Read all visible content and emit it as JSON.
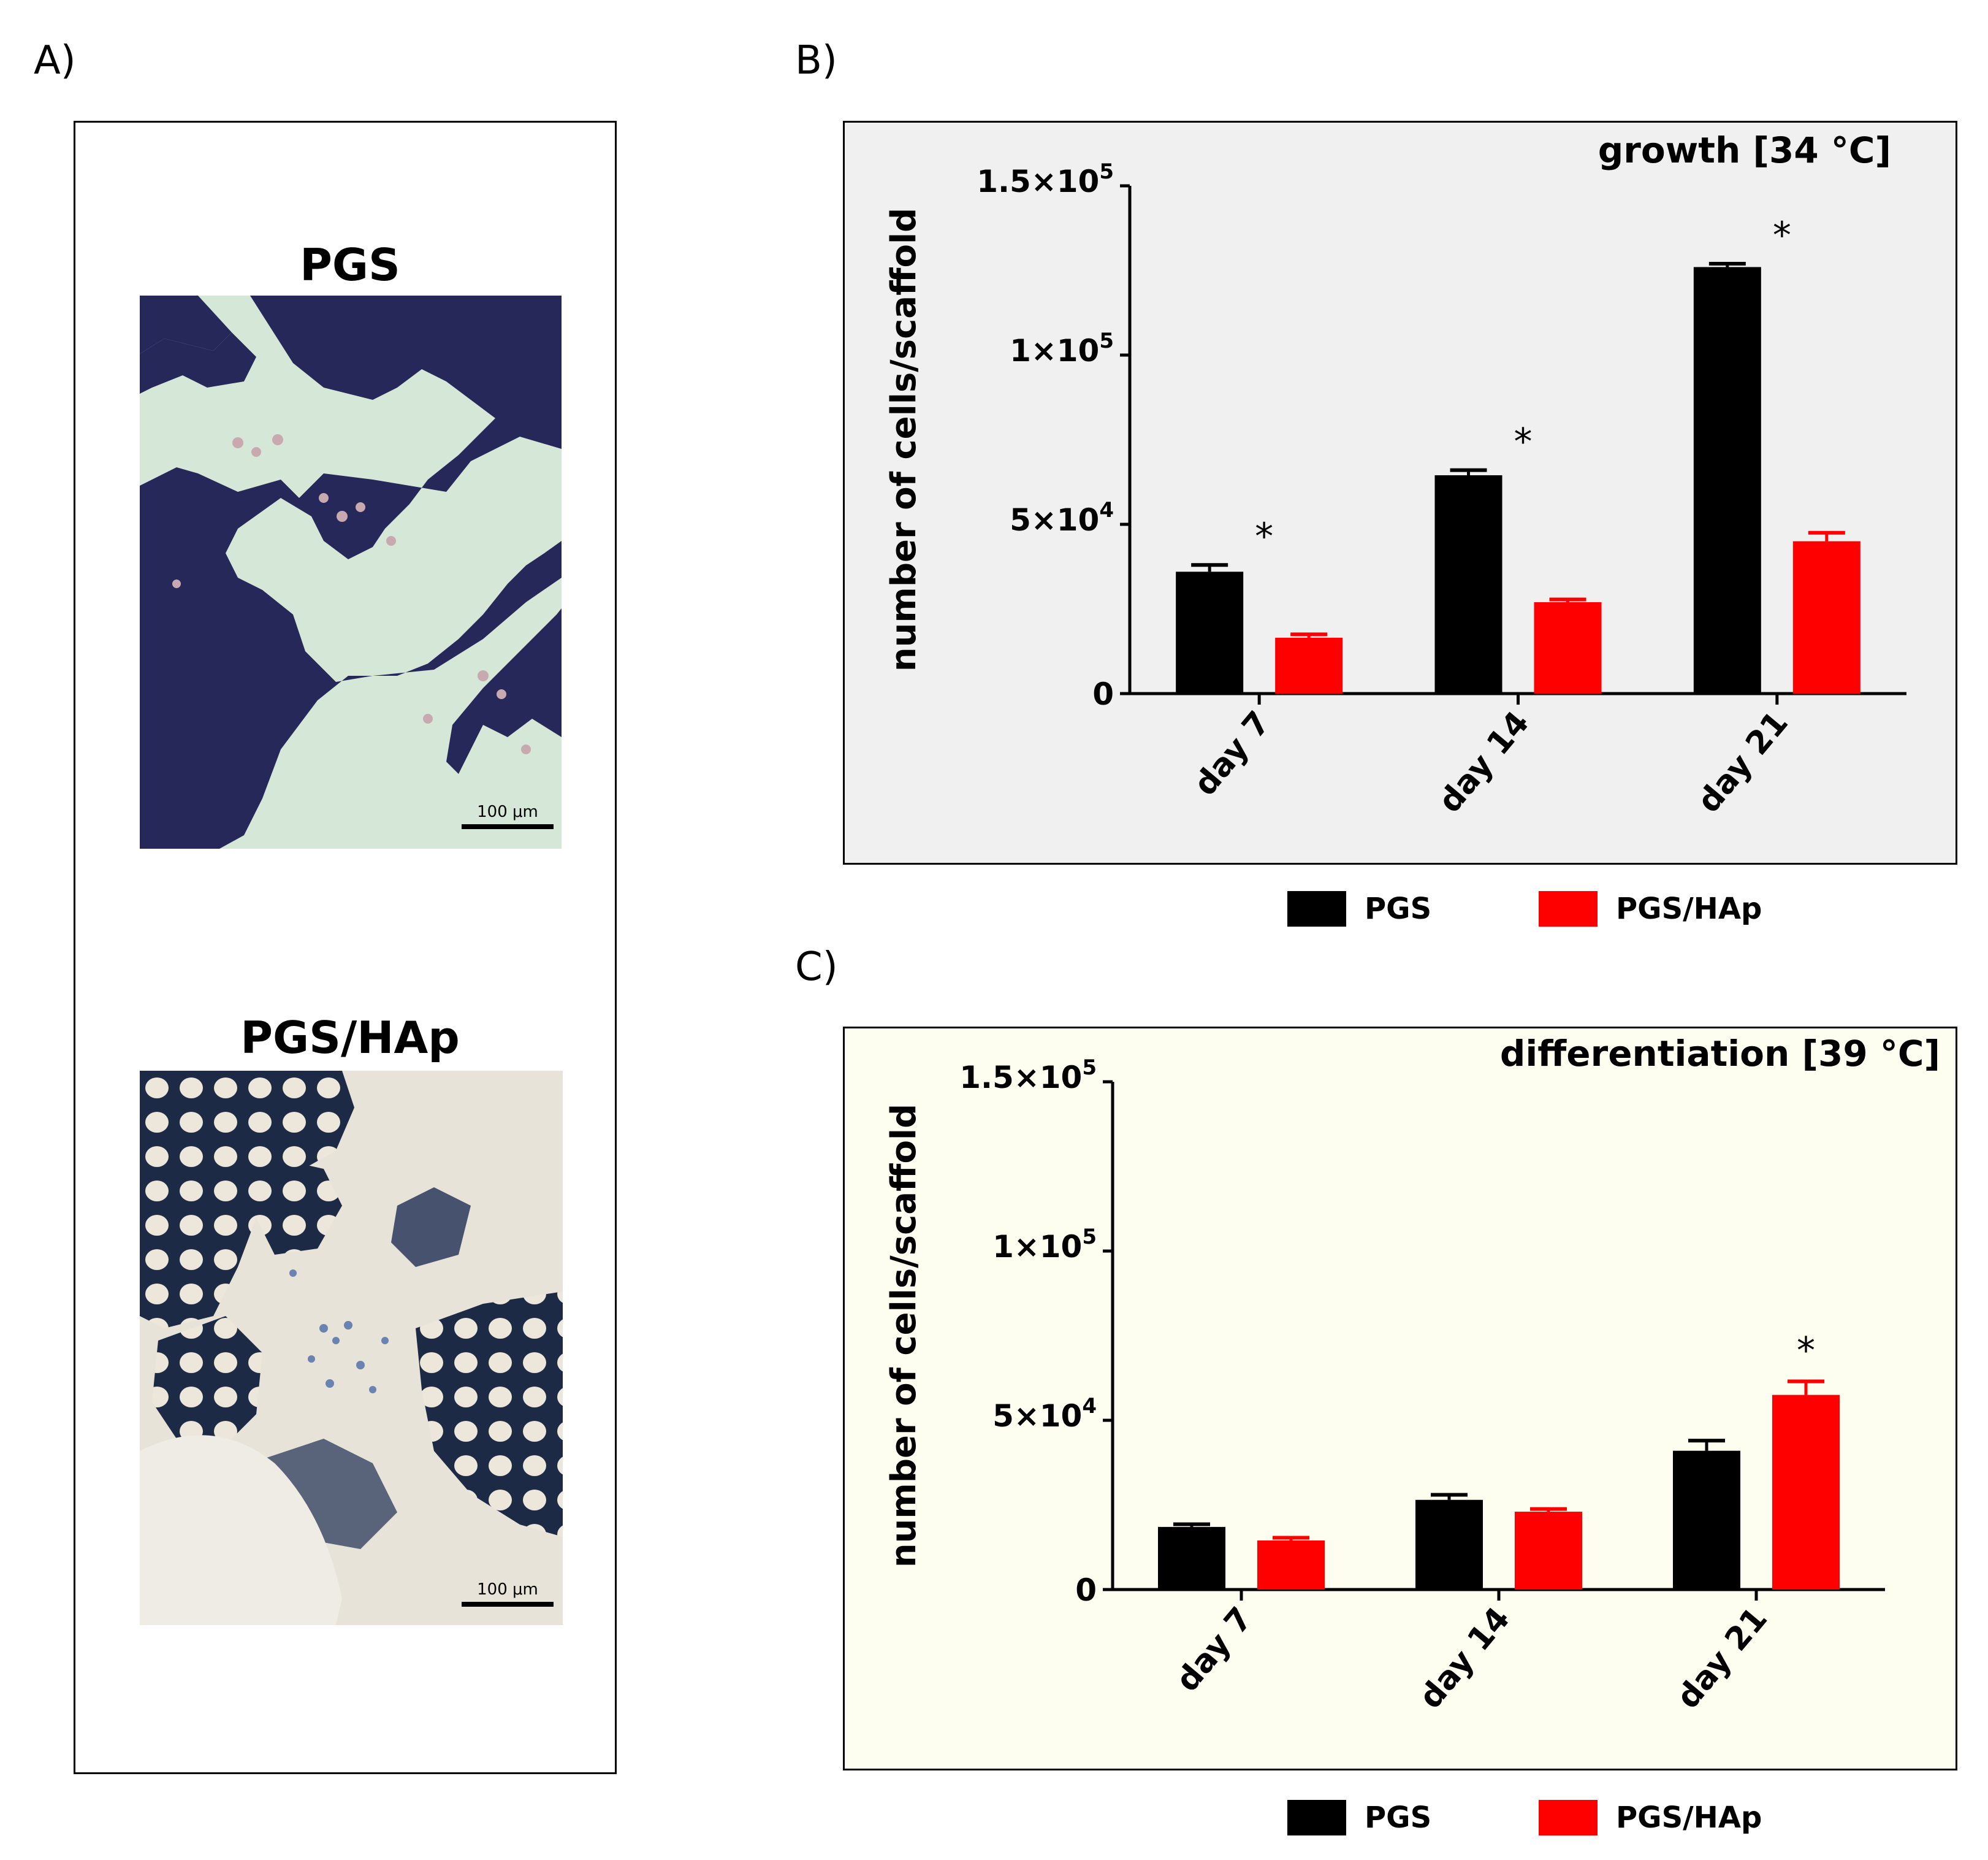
{
  "panels": {
    "a": {
      "label": "A)",
      "images": [
        {
          "title": "PGS",
          "scale_bar": "100 μm",
          "description": "histology-pgs-image"
        },
        {
          "title": "PGS/HAp",
          "scale_bar": "100 μm",
          "description": "histology-pgs-hap-image"
        }
      ]
    },
    "b": {
      "label": "B)"
    },
    "c": {
      "label": "C)"
    }
  },
  "colors": {
    "pgs": "#000000",
    "pgs_hap": "#ff0000",
    "bg_b": "#f0f0f0",
    "bg_c": "#fefef0",
    "pgs_stain": "#27285a",
    "pgs_bg": "#d5e7d6",
    "hap_bg": "#e8e3d8"
  },
  "legend": {
    "pgs": "PGS",
    "pgs_hap": "PGS/HAp"
  },
  "chart_data": [
    {
      "type": "bar",
      "title": "growth [34 °C]",
      "ylabel": "number of cells/scaffold",
      "xlabel": "",
      "categories": [
        "day 7",
        "day 14",
        "day 21"
      ],
      "ylim": [
        0,
        150000
      ],
      "yticks": [
        {
          "value": 0,
          "label": "0"
        },
        {
          "value": 50000,
          "label": "5×10",
          "sup": "4"
        },
        {
          "value": 100000,
          "label": "1×10",
          "sup": "5"
        },
        {
          "value": 150000,
          "label": "1.5×10",
          "sup": "5"
        }
      ],
      "series": [
        {
          "name": "PGS",
          "values": [
            36000,
            64500,
            126000
          ],
          "errors": [
            2000,
            1500,
            1000
          ]
        },
        {
          "name": "PGS/HAp",
          "values": [
            16500,
            27000,
            45000
          ],
          "errors": [
            1000,
            800,
            2500
          ]
        }
      ],
      "annotations": [
        {
          "category": "day 7",
          "text": "*"
        },
        {
          "category": "day 14",
          "text": "*"
        },
        {
          "category": "day 21",
          "text": "*"
        }
      ]
    },
    {
      "type": "bar",
      "title": "differentiation [39 °C]",
      "ylabel": "number of cells/scaffold",
      "xlabel": "",
      "categories": [
        "day 7",
        "day 14",
        "day 21"
      ],
      "ylim": [
        0,
        150000
      ],
      "yticks": [
        {
          "value": 0,
          "label": "0"
        },
        {
          "value": 50000,
          "label": "5×10",
          "sup": "4"
        },
        {
          "value": 100000,
          "label": "1×10",
          "sup": "5"
        },
        {
          "value": 150000,
          "label": "1.5×10",
          "sup": "5"
        }
      ],
      "series": [
        {
          "name": "PGS",
          "values": [
            18500,
            26500,
            41000
          ],
          "errors": [
            800,
            1500,
            3000
          ]
        },
        {
          "name": "PGS/HAp",
          "values": [
            14500,
            23000,
            57500
          ],
          "errors": [
            800,
            800,
            4000
          ]
        }
      ],
      "annotations": [
        {
          "category": "day 21",
          "series": "PGS/HAp",
          "text": "*"
        }
      ]
    }
  ]
}
